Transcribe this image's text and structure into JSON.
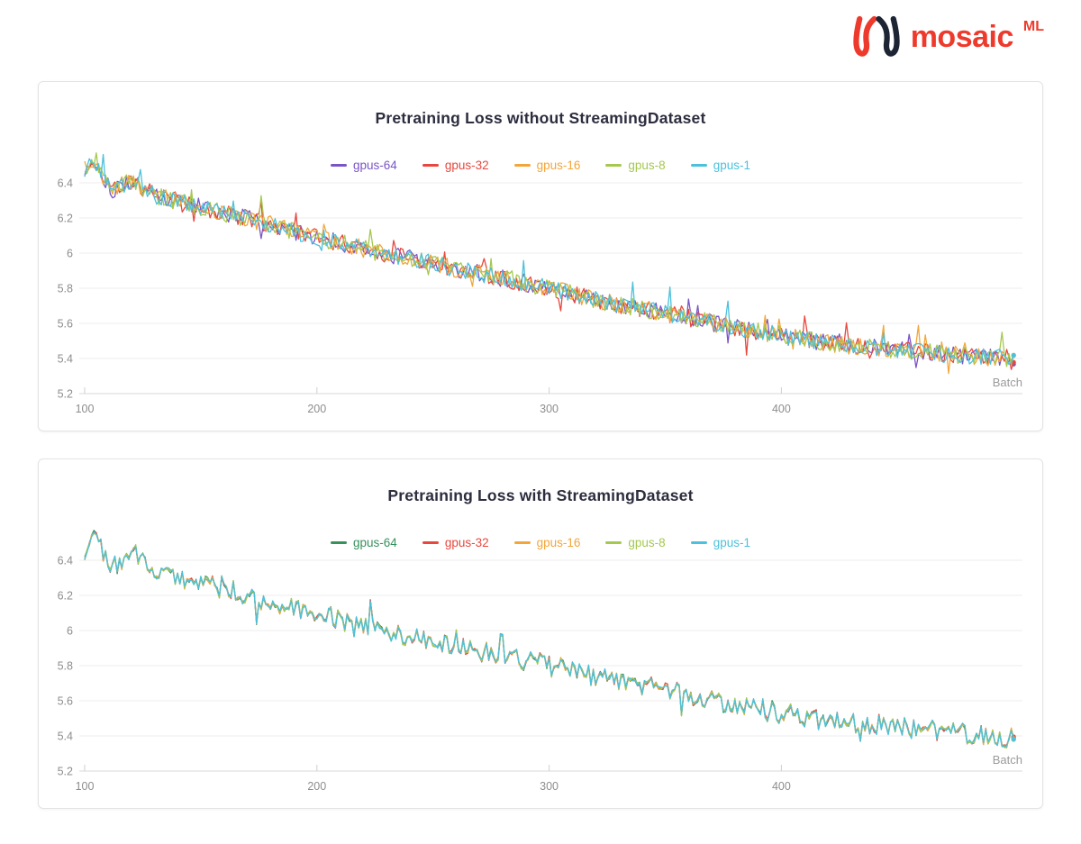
{
  "logo": {
    "brand": "mosaic",
    "superscript": "ML",
    "wordmark_color": "#ee3a2c",
    "mark_red": "#ee3a2c",
    "mark_navy": "#1d2433"
  },
  "chart_data": [
    {
      "type": "line",
      "title": "Pretraining Loss without StreamingDataset",
      "xlabel": "Batch",
      "ylabel": "",
      "x_ticks": [
        100,
        200,
        300,
        400
      ],
      "y_ticks": [
        5.2,
        5.4,
        5.6,
        5.8,
        6,
        6.2,
        6.4
      ],
      "x_range": [
        100,
        500
      ],
      "y_range": [
        5.2,
        6.6
      ],
      "grid": true,
      "legend_position": "top-center",
      "series": [
        {
          "name": "gpus-64",
          "color": "#7a55c7",
          "seed": 101
        },
        {
          "name": "gpus-32",
          "color": "#e8473d",
          "seed": 202
        },
        {
          "name": "gpus-16",
          "color": "#f2a63a",
          "seed": 303
        },
        {
          "name": "gpus-8",
          "color": "#a5c84f",
          "seed": 404
        },
        {
          "name": "gpus-1",
          "color": "#4cc0dc",
          "seed": 505
        }
      ],
      "trend": [
        [
          100,
          6.48
        ],
        [
          104,
          6.52
        ],
        [
          112,
          6.36
        ],
        [
          120,
          6.41
        ],
        [
          130,
          6.33
        ],
        [
          150,
          6.26
        ],
        [
          175,
          6.18
        ],
        [
          200,
          6.09
        ],
        [
          225,
          6.01
        ],
        [
          250,
          5.94
        ],
        [
          275,
          5.87
        ],
        [
          300,
          5.8
        ],
        [
          325,
          5.72
        ],
        [
          350,
          5.66
        ],
        [
          375,
          5.59
        ],
        [
          400,
          5.53
        ],
        [
          425,
          5.48
        ],
        [
          450,
          5.45
        ],
        [
          475,
          5.42
        ],
        [
          500,
          5.4
        ]
      ],
      "noise": {
        "mode": "independent",
        "amplitude": 0.05,
        "spike_chance": 0.05,
        "spike_amplitude": 0.14
      }
    },
    {
      "type": "line",
      "title": "Pretraining Loss with StreamingDataset",
      "xlabel": "Batch",
      "ylabel": "",
      "x_ticks": [
        100,
        200,
        300,
        400
      ],
      "y_ticks": [
        5.2,
        5.4,
        5.6,
        5.8,
        6,
        6.2,
        6.4
      ],
      "x_range": [
        100,
        500
      ],
      "y_range": [
        5.2,
        6.6
      ],
      "grid": true,
      "legend_position": "top-center",
      "series": [
        {
          "name": "gpus-64",
          "color": "#36925a",
          "seed": 111
        },
        {
          "name": "gpus-32",
          "color": "#e8473d",
          "seed": 222
        },
        {
          "name": "gpus-16",
          "color": "#f2a63a",
          "seed": 333
        },
        {
          "name": "gpus-8",
          "color": "#a5c84f",
          "seed": 444
        },
        {
          "name": "gpus-1",
          "color": "#4cc0dc",
          "seed": 555
        }
      ],
      "trend": [
        [
          100,
          6.48
        ],
        [
          104,
          6.53
        ],
        [
          112,
          6.37
        ],
        [
          122,
          6.44
        ],
        [
          130,
          6.34
        ],
        [
          150,
          6.27
        ],
        [
          175,
          6.18
        ],
        [
          200,
          6.09
        ],
        [
          225,
          6.01
        ],
        [
          250,
          5.94
        ],
        [
          275,
          5.87
        ],
        [
          300,
          5.8
        ],
        [
          325,
          5.72
        ],
        [
          350,
          5.66
        ],
        [
          375,
          5.59
        ],
        [
          400,
          5.53
        ],
        [
          425,
          5.48
        ],
        [
          450,
          5.45
        ],
        [
          475,
          5.42
        ],
        [
          500,
          5.38
        ]
      ],
      "noise": {
        "mode": "shared",
        "shared_seed": 777,
        "amplitude": 0.055,
        "spike_chance": 0.06,
        "spike_amplitude": 0.15,
        "series_jitter": 0.01
      }
    }
  ]
}
